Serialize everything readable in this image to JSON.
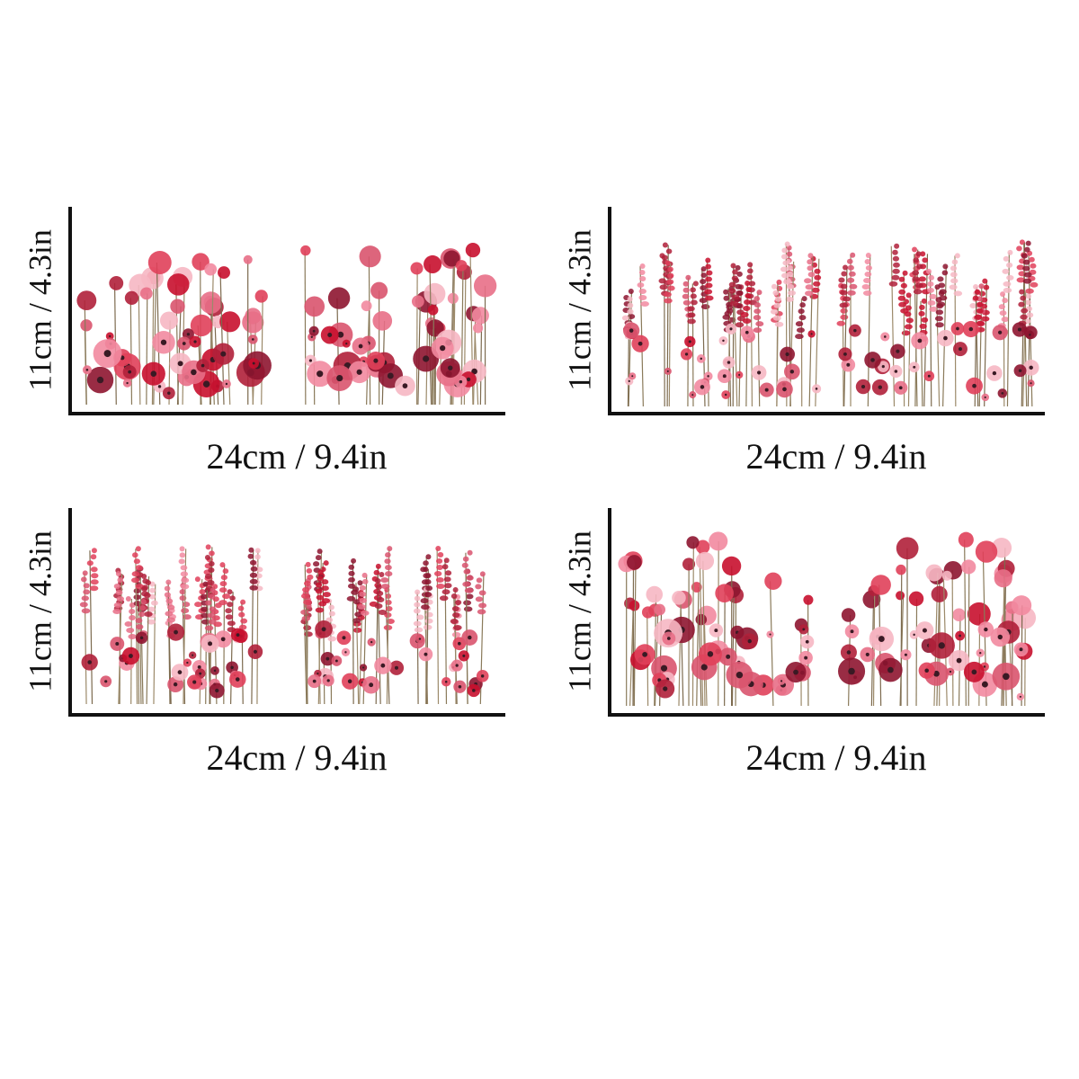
{
  "panels": [
    {
      "height_label": "11cm / 4.3in",
      "width_label": "24cm / 9.4in"
    },
    {
      "height_label": "11cm / 4.3in",
      "width_label": "24cm / 9.4in"
    },
    {
      "height_label": "11cm / 4.3in",
      "width_label": "24cm / 9.4in"
    },
    {
      "height_label": "11cm / 4.3in",
      "width_label": "24cm / 9.4in"
    }
  ]
}
